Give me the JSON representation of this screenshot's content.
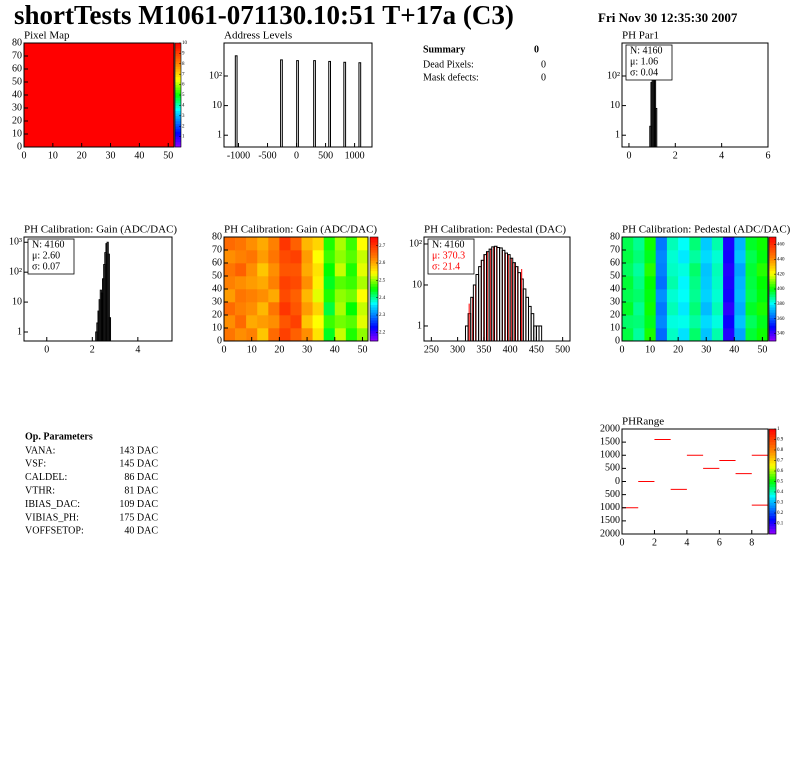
{
  "header": {
    "title": "shortTests M1061-071130.10:51 T+17a (C3)",
    "date": "Fri Nov 30 12:35:30 2007"
  },
  "summary": {
    "title": "Summary",
    "value": 0,
    "rows": [
      {
        "label": "Dead Pixels:",
        "value": 0
      },
      {
        "label": "Mask defects:",
        "value": 0
      }
    ]
  },
  "op_parameters": {
    "title": "Op. Parameters",
    "rows": [
      [
        "VANA:",
        "143 DAC"
      ],
      [
        "VSF:",
        "145 DAC"
      ],
      [
        "CALDEL:",
        "86 DAC"
      ],
      [
        "VTHR:",
        "81 DAC"
      ],
      [
        "IBIAS_DAC:",
        "109 DAC"
      ],
      [
        "VIBIAS_PH:",
        "175 DAC"
      ],
      [
        "VOFFSETOP:",
        "40 DAC"
      ]
    ]
  },
  "chart_data": [
    {
      "type": "heatmap",
      "title": "Pixel Map",
      "xlim": [
        0,
        52
      ],
      "ylim": [
        0,
        80
      ],
      "xticks": [
        0,
        10,
        20,
        30,
        40,
        50
      ],
      "yticks": [
        0,
        10,
        20,
        30,
        40,
        50,
        60,
        70,
        80
      ],
      "x_edges": [
        0,
        52
      ],
      "y_edges": [
        0,
        80
      ],
      "z": [
        [
          10
        ]
      ],
      "zlim": [
        0,
        10
      ],
      "zticks": [
        1,
        2,
        3,
        4,
        5,
        6,
        7,
        8,
        9,
        10
      ]
    },
    {
      "type": "histogram",
      "title": "Address Levels",
      "log_y": true,
      "xlim": [
        -1250,
        1300
      ],
      "ylim": [
        0.4,
        1300
      ],
      "xticks": [
        -1000,
        -500,
        0,
        500,
        1000
      ],
      "yticks": [
        1,
        10,
        {
          "value": 100,
          "label": "10²"
        }
      ],
      "bins": [
        -1055,
        -1025,
        -275,
        -245,
        2,
        32,
        295,
        325,
        555,
        585,
        815,
        845,
        1075,
        1105
      ],
      "counts": [
        480,
        0,
        350,
        0,
        330,
        0,
        330,
        0,
        310,
        0,
        290,
        0,
        280
      ]
    },
    {
      "type": "histogram",
      "title": "PH Par1",
      "log_y": true,
      "xlim": [
        -0.3,
        6
      ],
      "ylim": [
        0.4,
        1300
      ],
      "xticks": [
        0,
        2,
        4,
        6
      ],
      "yticks": [
        1,
        10,
        {
          "value": 100,
          "label": "10²"
        }
      ],
      "bins": [
        0.9,
        0.95,
        1.0,
        1.05,
        1.1,
        1.15,
        1.2
      ],
      "counts": [
        2,
        60,
        500,
        700,
        300,
        8
      ],
      "stats": [
        "N: 4160",
        "μ: 1.06",
        "σ: 0.04"
      ]
    },
    {
      "type": "histogram",
      "title": "PH Calibration: Gain (ADC/DAC)",
      "log_y": true,
      "xlim": [
        -1,
        5.5
      ],
      "ylim": [
        0.5,
        1500
      ],
      "xticks": [
        0,
        2,
        4
      ],
      "yticks": [
        1,
        10,
        {
          "value": 100,
          "label": "10²"
        },
        {
          "value": 1000,
          "label": "10³"
        }
      ],
      "bins": [
        2.15,
        2.2,
        2.25,
        2.3,
        2.35,
        2.4,
        2.45,
        2.5,
        2.55,
        2.6,
        2.65,
        2.7,
        2.75,
        2.8
      ],
      "counts": [
        1,
        2,
        5,
        12,
        25,
        20,
        60,
        180,
        450,
        900,
        1000,
        400,
        3
      ],
      "stats": [
        "N: 4160",
        "μ: 2.60",
        "σ: 0.07"
      ]
    },
    {
      "type": "heatmap",
      "title": "PH Calibration: Gain (ADC/DAC)",
      "xlim": [
        0,
        52
      ],
      "ylim": [
        0,
        80
      ],
      "xticks": [
        0,
        10,
        20,
        30,
        40,
        50
      ],
      "yticks": [
        0,
        10,
        20,
        30,
        40,
        50,
        60,
        70,
        80
      ],
      "x_edges": [
        0,
        4,
        8,
        12,
        16,
        20,
        24,
        28,
        32,
        36,
        40,
        44,
        48,
        52
      ],
      "y_edges": [
        0,
        10,
        20,
        30,
        40,
        50,
        60,
        70,
        80
      ],
      "z": [
        [
          2.64,
          2.62,
          2.63,
          2.58,
          2.65,
          2.69,
          2.66,
          2.62,
          2.56,
          2.44,
          2.52,
          2.46,
          2.5
        ],
        [
          2.62,
          2.65,
          2.6,
          2.61,
          2.62,
          2.67,
          2.69,
          2.58,
          2.54,
          2.47,
          2.49,
          2.48,
          2.53
        ],
        [
          2.65,
          2.63,
          2.62,
          2.59,
          2.64,
          2.7,
          2.67,
          2.61,
          2.57,
          2.43,
          2.51,
          2.45,
          2.52
        ],
        [
          2.61,
          2.64,
          2.63,
          2.62,
          2.6,
          2.68,
          2.66,
          2.59,
          2.53,
          2.46,
          2.5,
          2.49,
          2.54
        ],
        [
          2.63,
          2.62,
          2.61,
          2.6,
          2.63,
          2.69,
          2.68,
          2.62,
          2.55,
          2.44,
          2.48,
          2.47,
          2.51
        ],
        [
          2.64,
          2.66,
          2.62,
          2.58,
          2.62,
          2.67,
          2.67,
          2.6,
          2.56,
          2.45,
          2.52,
          2.46,
          2.53
        ],
        [
          2.62,
          2.63,
          2.64,
          2.61,
          2.64,
          2.68,
          2.69,
          2.61,
          2.54,
          2.47,
          2.5,
          2.48,
          2.52
        ],
        [
          2.65,
          2.64,
          2.62,
          2.6,
          2.63,
          2.7,
          2.66,
          2.59,
          2.57,
          2.46,
          2.51,
          2.47,
          2.54
        ]
      ],
      "zlim": [
        2.15,
        2.75
      ],
      "zticks": [
        2.2,
        2.3,
        2.4,
        2.5,
        2.6,
        2.7
      ]
    },
    {
      "type": "histogram",
      "title": "PH Calibration: Pedestal (DAC)",
      "log_y": true,
      "xlim": [
        236,
        514
      ],
      "ylim": [
        0.43,
        148
      ],
      "xticks": [
        250,
        300,
        350,
        400,
        450,
        500
      ],
      "yticks": [
        1,
        10,
        {
          "value": 100,
          "label": "10²"
        }
      ],
      "bins": [
        315,
        320,
        325,
        330,
        335,
        340,
        345,
        350,
        355,
        360,
        365,
        370,
        375,
        380,
        385,
        390,
        395,
        400,
        405,
        410,
        415,
        420,
        425,
        430,
        435,
        440,
        445,
        450,
        455,
        460,
        465
      ],
      "counts": [
        1,
        2,
        5,
        10,
        18,
        28,
        40,
        55,
        65,
        75,
        85,
        88,
        82,
        80,
        70,
        60,
        55,
        45,
        35,
        28,
        20,
        14,
        8,
        5,
        3,
        2,
        1,
        1,
        1,
        0
      ],
      "fit_range": [
        322,
        422
      ],
      "fit_color": "#ff0000",
      "stats": [
        "N: 4160",
        "μ: 370.3",
        "σ: 21.4"
      ],
      "stats_colors": [
        "#000000",
        "#ff0000",
        "#ff0000"
      ]
    },
    {
      "type": "heatmap",
      "title": "PH Calibration: Pedestal (ADC/DAC)",
      "xlim": [
        0,
        52
      ],
      "ylim": [
        0,
        80
      ],
      "xticks": [
        0,
        10,
        20,
        30,
        40,
        50
      ],
      "yticks": [
        0,
        10,
        20,
        30,
        40,
        50,
        60,
        70,
        80
      ],
      "x_edges": [
        0,
        4,
        8,
        12,
        16,
        20,
        24,
        28,
        32,
        36,
        40,
        44,
        48,
        52
      ],
      "y_edges": [
        0,
        10,
        20,
        30,
        40,
        50,
        60,
        70,
        80
      ],
      "z": [
        [
          395,
          388,
          402,
          362,
          385,
          378,
          392,
          374,
          387,
          344,
          370,
          396,
          401
        ],
        [
          392,
          391,
          398,
          366,
          383,
          382,
          388,
          377,
          383,
          347,
          374,
          393,
          398
        ],
        [
          397,
          389,
          401,
          364,
          386,
          379,
          391,
          373,
          386,
          343,
          371,
          397,
          402
        ],
        [
          394,
          392,
          399,
          367,
          384,
          381,
          389,
          376,
          384,
          346,
          373,
          394,
          399
        ],
        [
          396,
          390,
          400,
          363,
          387,
          380,
          390,
          375,
          385,
          345,
          372,
          395,
          400
        ],
        [
          393,
          388,
          403,
          365,
          385,
          383,
          392,
          374,
          386,
          344,
          370,
          396,
          403
        ],
        [
          395,
          391,
          398,
          366,
          384,
          379,
          388,
          377,
          384,
          346,
          374,
          394,
          399
        ],
        [
          394,
          389,
          401,
          364,
          386,
          381,
          391,
          375,
          387,
          345,
          372,
          397,
          401
        ]
      ],
      "zlim": [
        330,
        470
      ],
      "zticks": [
        340,
        360,
        380,
        400,
        420,
        440,
        460
      ]
    },
    {
      "type": "scatter",
      "title": "PHRange",
      "xlim": [
        0,
        9
      ],
      "ylim": [
        -2000,
        2000
      ],
      "xticks": [
        0,
        2,
        4,
        6,
        8
      ],
      "yticks": [
        {
          "value": -2000,
          "label": "2000"
        },
        {
          "value": -1500,
          "label": "1500"
        },
        {
          "value": -1000,
          "label": "1000"
        },
        {
          "value": -500,
          "label": "500"
        },
        0,
        500,
        1000,
        1500,
        2000
      ],
      "x": [
        0.5,
        1.5,
        2.5,
        3.5,
        4.5,
        5.5,
        6.5,
        7.5,
        8.5,
        8.5
      ],
      "values": [
        -1000,
        0,
        1600,
        -300,
        1000,
        500,
        800,
        300,
        1000,
        -900
      ],
      "color": "#ff0000",
      "zlim": [
        0,
        1
      ],
      "zticks": [
        0.1,
        0.2,
        0.3,
        0.4,
        0.5,
        0.6,
        0.7,
        0.8,
        0.9,
        1
      ]
    }
  ]
}
